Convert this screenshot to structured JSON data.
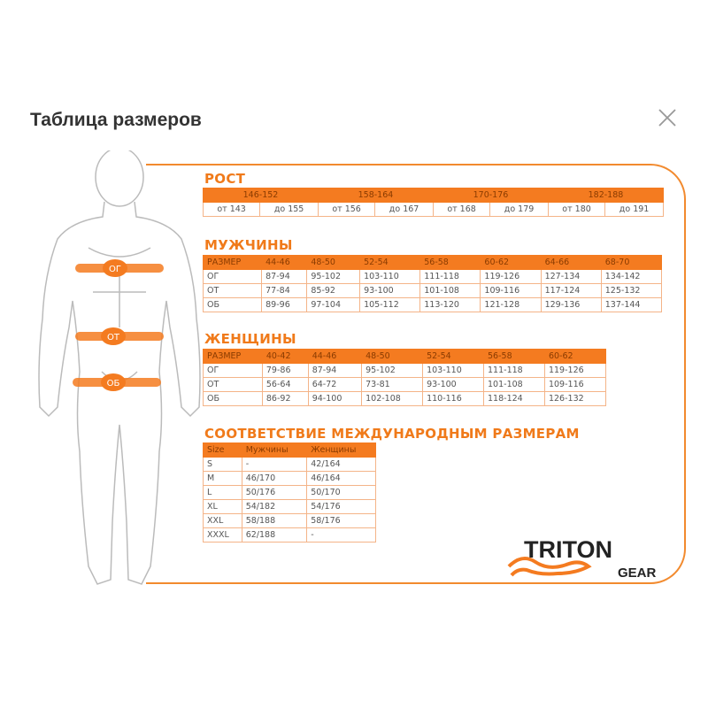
{
  "title": "Таблица размеров",
  "height": {
    "heading": "РОСТ",
    "ranges": [
      "146-152",
      "158-164",
      "170-176",
      "182-188"
    ],
    "bounds": [
      "от 143",
      "до 155",
      "от 156",
      "до 167",
      "от 168",
      "до 179",
      "от 180",
      "до 191"
    ]
  },
  "men": {
    "heading": "МУЖЧИНЫ",
    "header": [
      "РАЗМЕР",
      "44-46",
      "48-50",
      "52-54",
      "56-58",
      "60-62",
      "64-66",
      "68-70"
    ],
    "rows": [
      [
        "ОГ",
        "87-94",
        "95-102",
        "103-110",
        "111-118",
        "119-126",
        "127-134",
        "134-142"
      ],
      [
        "ОТ",
        "77-84",
        "85-92",
        "93-100",
        "101-108",
        "109-116",
        "117-124",
        "125-132"
      ],
      [
        "ОБ",
        "89-96",
        "97-104",
        "105-112",
        "113-120",
        "121-128",
        "129-136",
        "137-144"
      ]
    ]
  },
  "women": {
    "heading": "ЖЕНЩИНЫ",
    "header": [
      "РАЗМЕР",
      "40-42",
      "44-46",
      "48-50",
      "52-54",
      "56-58",
      "60-62"
    ],
    "rows": [
      [
        "ОГ",
        "79-86",
        "87-94",
        "95-102",
        "103-110",
        "111-118",
        "119-126"
      ],
      [
        "ОТ",
        "56-64",
        "64-72",
        "73-81",
        "93-100",
        "101-108",
        "109-116"
      ],
      [
        "ОБ",
        "86-92",
        "94-100",
        "102-108",
        "110-116",
        "118-124",
        "126-132"
      ]
    ]
  },
  "intl": {
    "heading": "СООТВЕТСТВИЕ МЕЖДУНАРОДНЫМ РАЗМЕРАМ",
    "header": [
      "Size",
      "Мужчины",
      "Женщины"
    ],
    "rows": [
      [
        "S",
        "-",
        "42/164"
      ],
      [
        "M",
        "46/170",
        "46/164"
      ],
      [
        "L",
        "50/176",
        "50/170"
      ],
      [
        "XL",
        "54/182",
        "54/176"
      ],
      [
        "XXL",
        "58/188",
        "58/176"
      ],
      [
        "XXXL",
        "62/188",
        "-"
      ]
    ]
  },
  "figure": {
    "labels": [
      "ОГ",
      "ОТ",
      "ОБ"
    ]
  },
  "logo": {
    "brand": "TRITON",
    "sub": "GEAR"
  },
  "colors": {
    "accent": "#f47b20"
  }
}
